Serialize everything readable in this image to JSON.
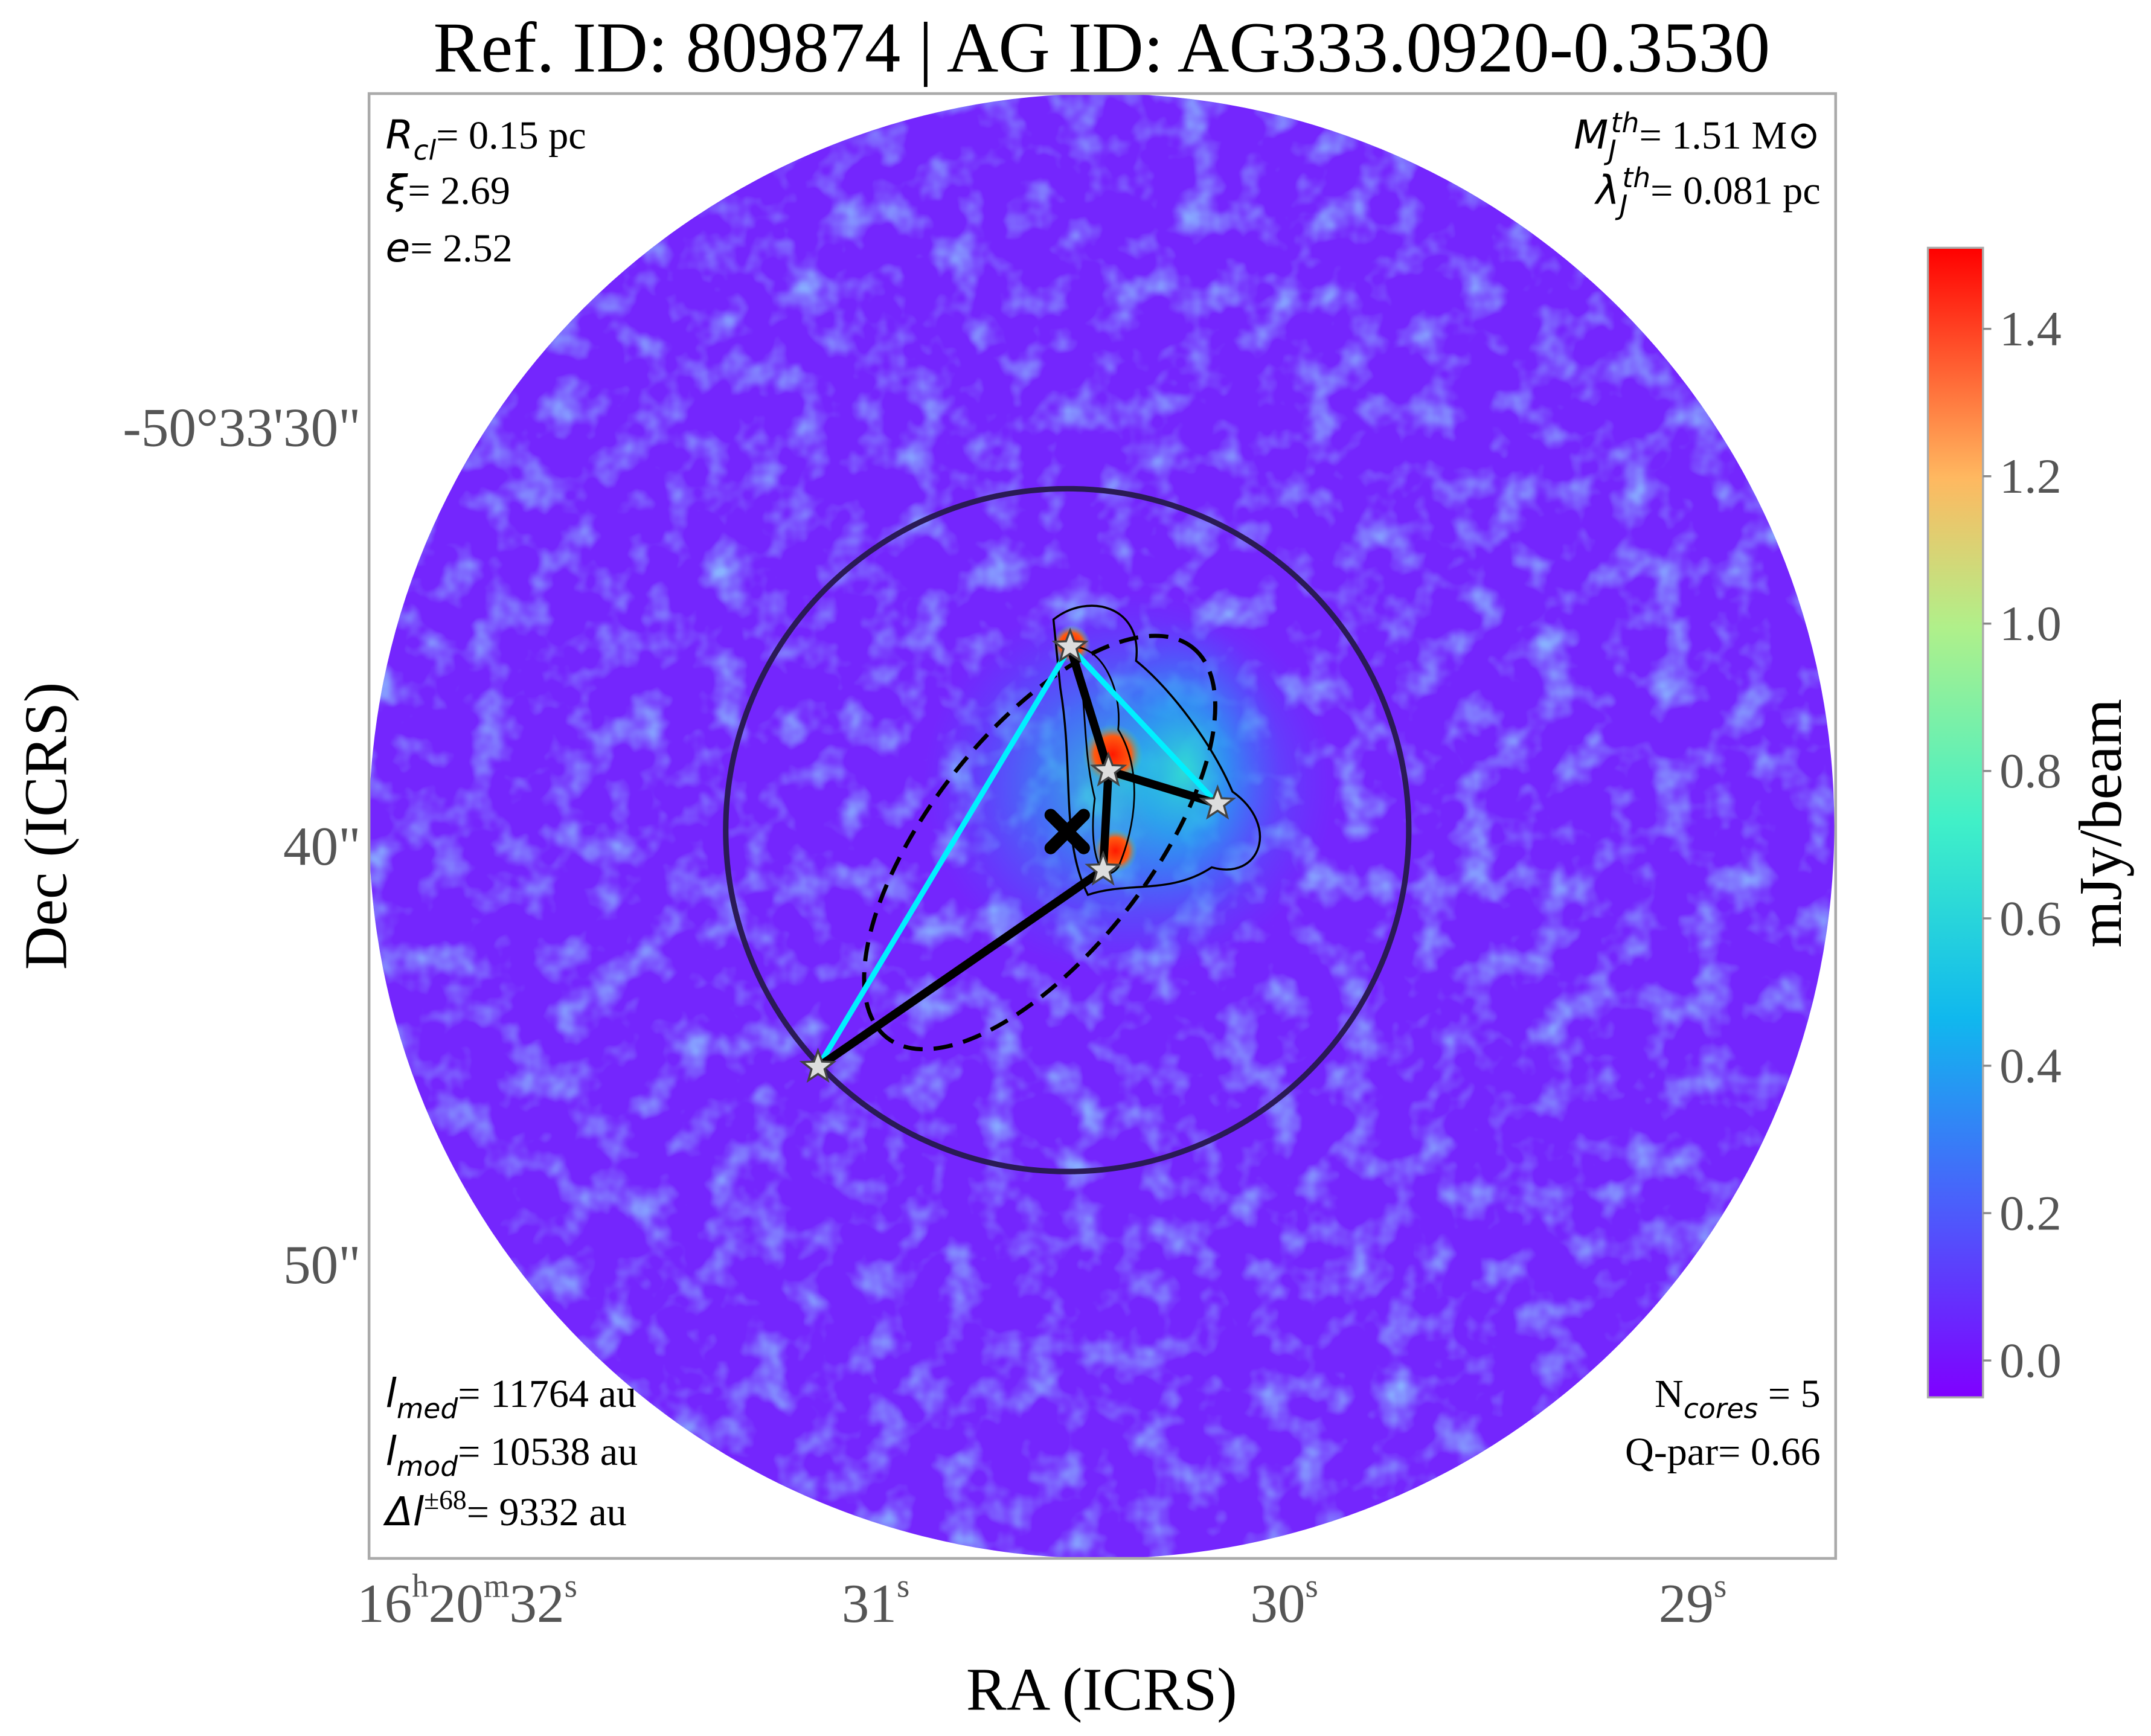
{
  "title": "Ref. ID: 809874 | AG ID: AG333.0920-0.3530",
  "annotations": {
    "r_cl": {
      "symbol": "R",
      "sub": "cl",
      "text": "= 0.15 pc"
    },
    "xi": {
      "symbol": "ξ",
      "text": "= 2.69"
    },
    "e": {
      "symbol": "e",
      "text": "= 2.52"
    },
    "m_j": {
      "symbol": "M",
      "sub": "J",
      "sup": "th",
      "text": "= 1.51 M⊙"
    },
    "lambda_j": {
      "symbol": "λ",
      "sub": "J",
      "sup": "th",
      "text": "= 0.081 pc"
    },
    "l_med": {
      "symbol": "l",
      "sub": "med",
      "text": "= 11764 au"
    },
    "l_mod": {
      "symbol": "l",
      "sub": "mod",
      "text": "= 10538 au"
    },
    "delta_l": {
      "symbol": "Δl",
      "sup": "±68",
      "text": "= 9332 au"
    },
    "n_cores": {
      "symbol": "N",
      "sub": "cores",
      "text": " = 5"
    },
    "q_par": {
      "text": "Q-par= 0.66"
    }
  },
  "chart_data": {
    "type": "image",
    "xlabel": "RA (ICRS)",
    "ylabel": "Dec (ICRS)",
    "xlim": [
      32.24,
      28.65
    ],
    "ylim": [
      22.04,
      57.04
    ],
    "xticks": [
      {
        "value": 32,
        "label": [
          "16",
          "h",
          "20",
          "m",
          "32",
          "s"
        ]
      },
      {
        "value": 31,
        "label": [
          "31",
          "s"
        ]
      },
      {
        "value": 30,
        "label": [
          "30",
          "s"
        ]
      },
      {
        "value": 29,
        "label": [
          "29",
          "s"
        ]
      }
    ],
    "yticks": [
      {
        "value": 30,
        "label": "-50°33'30\""
      },
      {
        "value": 40,
        "label": "40\""
      },
      {
        "value": 50,
        "label": "50\""
      }
    ],
    "colorbar": {
      "label": "mJy/beam",
      "clim": [
        -0.05,
        1.51
      ],
      "ticks": [
        {
          "value": 0,
          "label": "0.0"
        },
        {
          "value": 0.2,
          "label": "0.2"
        },
        {
          "value": 0.4,
          "label": "0.4"
        },
        {
          "value": 0.6,
          "label": "0.6"
        },
        {
          "value": 0.8,
          "label": "0.8"
        },
        {
          "value": 1,
          "label": "1.0"
        },
        {
          "value": 1.2,
          "label": "1.2"
        },
        {
          "value": 1.4,
          "label": "1.4"
        }
      ]
    },
    "cores": {
      "ra": [
        30.524,
        30.43,
        30.163,
        30.443,
        31.141
      ],
      "dec": [
        35.26,
        38.22,
        39.01,
        40.59,
        45.3
      ]
    }
  }
}
